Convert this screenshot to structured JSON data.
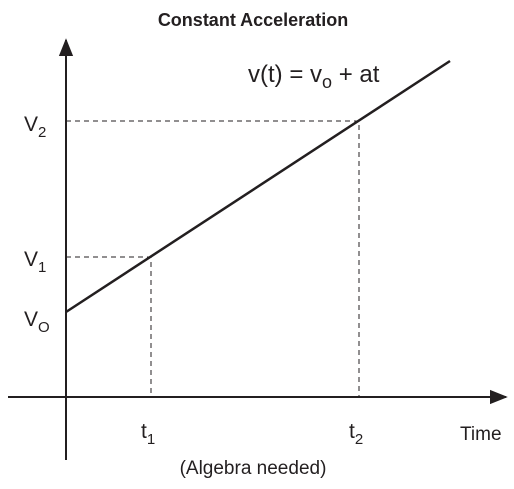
{
  "title": "Constant Acceleration",
  "equation": {
    "start": "v(t) = v",
    "sub": "o",
    "end": " + at"
  },
  "y_labels": [
    {
      "base": "V",
      "sub": "2"
    },
    {
      "base": "V",
      "sub": "1"
    },
    {
      "base": "V",
      "sub": "O"
    }
  ],
  "x_labels": [
    {
      "base": "t",
      "sub": "1"
    },
    {
      "base": "t",
      "sub": "2"
    }
  ],
  "x_axis_label": "Time",
  "caption": "(Algebra needed)"
}
